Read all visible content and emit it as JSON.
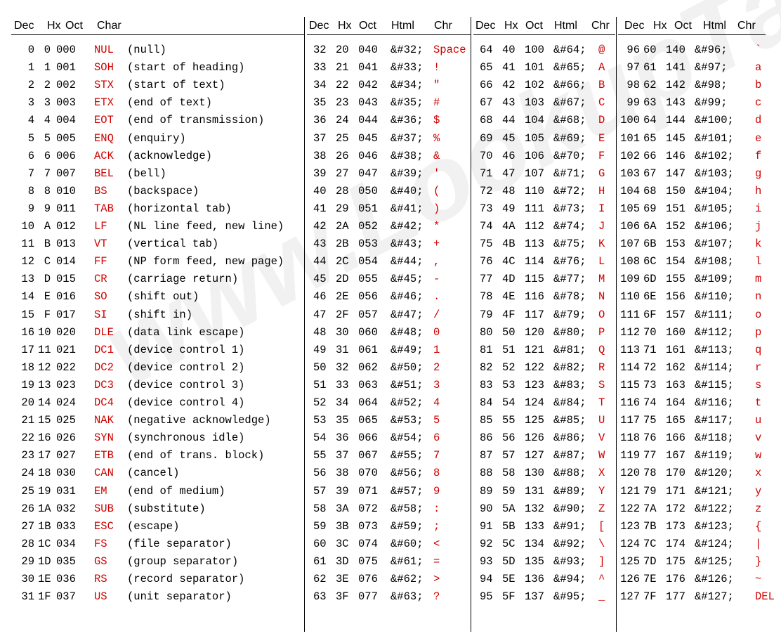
{
  "headers": [
    {
      "dec": "Dec",
      "hx": "Hx",
      "oct": "Oct",
      "char": "Char"
    },
    {
      "dec": "Dec",
      "hx": "Hx",
      "oct": "Oct",
      "html": "Html",
      "chr": "Chr"
    },
    {
      "dec": "Dec",
      "hx": "Hx",
      "oct": "Oct",
      "html": "Html",
      "chr": "Chr"
    },
    {
      "dec": "Dec",
      "hx": "Hx",
      "oct": "Oct",
      "html": "Html",
      "chr": "Chr"
    }
  ],
  "watermark": "www.LookupTables.com",
  "rows": [
    {
      "a": [
        "0",
        "0",
        "000",
        "NUL",
        "(null)"
      ],
      "b": [
        "32",
        "20",
        "040",
        "&#32;",
        "Space"
      ],
      "c": [
        "64",
        "40",
        "100",
        "&#64;",
        "@"
      ],
      "d": [
        "96",
        "60",
        "140",
        "&#96;",
        "`"
      ]
    },
    {
      "a": [
        "1",
        "1",
        "001",
        "SOH",
        "(start of heading)"
      ],
      "b": [
        "33",
        "21",
        "041",
        "&#33;",
        "!"
      ],
      "c": [
        "65",
        "41",
        "101",
        "&#65;",
        "A"
      ],
      "d": [
        "97",
        "61",
        "141",
        "&#97;",
        "a"
      ]
    },
    {
      "a": [
        "2",
        "2",
        "002",
        "STX",
        "(start of text)"
      ],
      "b": [
        "34",
        "22",
        "042",
        "&#34;",
        "\""
      ],
      "c": [
        "66",
        "42",
        "102",
        "&#66;",
        "B"
      ],
      "d": [
        "98",
        "62",
        "142",
        "&#98;",
        "b"
      ]
    },
    {
      "a": [
        "3",
        "3",
        "003",
        "ETX",
        "(end of text)"
      ],
      "b": [
        "35",
        "23",
        "043",
        "&#35;",
        "#"
      ],
      "c": [
        "67",
        "43",
        "103",
        "&#67;",
        "C"
      ],
      "d": [
        "99",
        "63",
        "143",
        "&#99;",
        "c"
      ]
    },
    {
      "a": [
        "4",
        "4",
        "004",
        "EOT",
        "(end of transmission)"
      ],
      "b": [
        "36",
        "24",
        "044",
        "&#36;",
        "$"
      ],
      "c": [
        "68",
        "44",
        "104",
        "&#68;",
        "D"
      ],
      "d": [
        "100",
        "64",
        "144",
        "&#100;",
        "d"
      ]
    },
    {
      "a": [
        "5",
        "5",
        "005",
        "ENQ",
        "(enquiry)"
      ],
      "b": [
        "37",
        "25",
        "045",
        "&#37;",
        "%"
      ],
      "c": [
        "69",
        "45",
        "105",
        "&#69;",
        "E"
      ],
      "d": [
        "101",
        "65",
        "145",
        "&#101;",
        "e"
      ]
    },
    {
      "a": [
        "6",
        "6",
        "006",
        "ACK",
        "(acknowledge)"
      ],
      "b": [
        "38",
        "26",
        "046",
        "&#38;",
        "&"
      ],
      "c": [
        "70",
        "46",
        "106",
        "&#70;",
        "F"
      ],
      "d": [
        "102",
        "66",
        "146",
        "&#102;",
        "f"
      ]
    },
    {
      "a": [
        "7",
        "7",
        "007",
        "BEL",
        "(bell)"
      ],
      "b": [
        "39",
        "27",
        "047",
        "&#39;",
        "'"
      ],
      "c": [
        "71",
        "47",
        "107",
        "&#71;",
        "G"
      ],
      "d": [
        "103",
        "67",
        "147",
        "&#103;",
        "g"
      ]
    },
    {
      "a": [
        "8",
        "8",
        "010",
        "BS",
        "(backspace)"
      ],
      "b": [
        "40",
        "28",
        "050",
        "&#40;",
        "("
      ],
      "c": [
        "72",
        "48",
        "110",
        "&#72;",
        "H"
      ],
      "d": [
        "104",
        "68",
        "150",
        "&#104;",
        "h"
      ]
    },
    {
      "a": [
        "9",
        "9",
        "011",
        "TAB",
        "(horizontal tab)"
      ],
      "b": [
        "41",
        "29",
        "051",
        "&#41;",
        ")"
      ],
      "c": [
        "73",
        "49",
        "111",
        "&#73;",
        "I"
      ],
      "d": [
        "105",
        "69",
        "151",
        "&#105;",
        "i"
      ]
    },
    {
      "a": [
        "10",
        "A",
        "012",
        "LF",
        "(NL line feed, new line)"
      ],
      "b": [
        "42",
        "2A",
        "052",
        "&#42;",
        "*"
      ],
      "c": [
        "74",
        "4A",
        "112",
        "&#74;",
        "J"
      ],
      "d": [
        "106",
        "6A",
        "152",
        "&#106;",
        "j"
      ]
    },
    {
      "a": [
        "11",
        "B",
        "013",
        "VT",
        "(vertical tab)"
      ],
      "b": [
        "43",
        "2B",
        "053",
        "&#43;",
        "+"
      ],
      "c": [
        "75",
        "4B",
        "113",
        "&#75;",
        "K"
      ],
      "d": [
        "107",
        "6B",
        "153",
        "&#107;",
        "k"
      ]
    },
    {
      "a": [
        "12",
        "C",
        "014",
        "FF",
        "(NP form feed, new page)"
      ],
      "b": [
        "44",
        "2C",
        "054",
        "&#44;",
        ","
      ],
      "c": [
        "76",
        "4C",
        "114",
        "&#76;",
        "L"
      ],
      "d": [
        "108",
        "6C",
        "154",
        "&#108;",
        "l"
      ]
    },
    {
      "a": [
        "13",
        "D",
        "015",
        "CR",
        "(carriage return)"
      ],
      "b": [
        "45",
        "2D",
        "055",
        "&#45;",
        "-"
      ],
      "c": [
        "77",
        "4D",
        "115",
        "&#77;",
        "M"
      ],
      "d": [
        "109",
        "6D",
        "155",
        "&#109;",
        "m"
      ]
    },
    {
      "a": [
        "14",
        "E",
        "016",
        "SO",
        "(shift out)"
      ],
      "b": [
        "46",
        "2E",
        "056",
        "&#46;",
        "."
      ],
      "c": [
        "78",
        "4E",
        "116",
        "&#78;",
        "N"
      ],
      "d": [
        "110",
        "6E",
        "156",
        "&#110;",
        "n"
      ]
    },
    {
      "a": [
        "15",
        "F",
        "017",
        "SI",
        "(shift in)"
      ],
      "b": [
        "47",
        "2F",
        "057",
        "&#47;",
        "/"
      ],
      "c": [
        "79",
        "4F",
        "117",
        "&#79;",
        "O"
      ],
      "d": [
        "111",
        "6F",
        "157",
        "&#111;",
        "o"
      ]
    },
    {
      "a": [
        "16",
        "10",
        "020",
        "DLE",
        "(data link escape)"
      ],
      "b": [
        "48",
        "30",
        "060",
        "&#48;",
        "0"
      ],
      "c": [
        "80",
        "50",
        "120",
        "&#80;",
        "P"
      ],
      "d": [
        "112",
        "70",
        "160",
        "&#112;",
        "p"
      ]
    },
    {
      "a": [
        "17",
        "11",
        "021",
        "DC1",
        "(device control 1)"
      ],
      "b": [
        "49",
        "31",
        "061",
        "&#49;",
        "1"
      ],
      "c": [
        "81",
        "51",
        "121",
        "&#81;",
        "Q"
      ],
      "d": [
        "113",
        "71",
        "161",
        "&#113;",
        "q"
      ]
    },
    {
      "a": [
        "18",
        "12",
        "022",
        "DC2",
        "(device control 2)"
      ],
      "b": [
        "50",
        "32",
        "062",
        "&#50;",
        "2"
      ],
      "c": [
        "82",
        "52",
        "122",
        "&#82;",
        "R"
      ],
      "d": [
        "114",
        "72",
        "162",
        "&#114;",
        "r"
      ]
    },
    {
      "a": [
        "19",
        "13",
        "023",
        "DC3",
        "(device control 3)"
      ],
      "b": [
        "51",
        "33",
        "063",
        "&#51;",
        "3"
      ],
      "c": [
        "83",
        "53",
        "123",
        "&#83;",
        "S"
      ],
      "d": [
        "115",
        "73",
        "163",
        "&#115;",
        "s"
      ]
    },
    {
      "a": [
        "20",
        "14",
        "024",
        "DC4",
        "(device control 4)"
      ],
      "b": [
        "52",
        "34",
        "064",
        "&#52;",
        "4"
      ],
      "c": [
        "84",
        "54",
        "124",
        "&#84;",
        "T"
      ],
      "d": [
        "116",
        "74",
        "164",
        "&#116;",
        "t"
      ]
    },
    {
      "a": [
        "21",
        "15",
        "025",
        "NAK",
        "(negative acknowledge)"
      ],
      "b": [
        "53",
        "35",
        "065",
        "&#53;",
        "5"
      ],
      "c": [
        "85",
        "55",
        "125",
        "&#85;",
        "U"
      ],
      "d": [
        "117",
        "75",
        "165",
        "&#117;",
        "u"
      ]
    },
    {
      "a": [
        "22",
        "16",
        "026",
        "SYN",
        "(synchronous idle)"
      ],
      "b": [
        "54",
        "36",
        "066",
        "&#54;",
        "6"
      ],
      "c": [
        "86",
        "56",
        "126",
        "&#86;",
        "V"
      ],
      "d": [
        "118",
        "76",
        "166",
        "&#118;",
        "v"
      ]
    },
    {
      "a": [
        "23",
        "17",
        "027",
        "ETB",
        "(end of trans. block)"
      ],
      "b": [
        "55",
        "37",
        "067",
        "&#55;",
        "7"
      ],
      "c": [
        "87",
        "57",
        "127",
        "&#87;",
        "W"
      ],
      "d": [
        "119",
        "77",
        "167",
        "&#119;",
        "w"
      ]
    },
    {
      "a": [
        "24",
        "18",
        "030",
        "CAN",
        "(cancel)"
      ],
      "b": [
        "56",
        "38",
        "070",
        "&#56;",
        "8"
      ],
      "c": [
        "88",
        "58",
        "130",
        "&#88;",
        "X"
      ],
      "d": [
        "120",
        "78",
        "170",
        "&#120;",
        "x"
      ]
    },
    {
      "a": [
        "25",
        "19",
        "031",
        "EM",
        "(end of medium)"
      ],
      "b": [
        "57",
        "39",
        "071",
        "&#57;",
        "9"
      ],
      "c": [
        "89",
        "59",
        "131",
        "&#89;",
        "Y"
      ],
      "d": [
        "121",
        "79",
        "171",
        "&#121;",
        "y"
      ]
    },
    {
      "a": [
        "26",
        "1A",
        "032",
        "SUB",
        "(substitute)"
      ],
      "b": [
        "58",
        "3A",
        "072",
        "&#58;",
        ":"
      ],
      "c": [
        "90",
        "5A",
        "132",
        "&#90;",
        "Z"
      ],
      "d": [
        "122",
        "7A",
        "172",
        "&#122;",
        "z"
      ]
    },
    {
      "a": [
        "27",
        "1B",
        "033",
        "ESC",
        "(escape)"
      ],
      "b": [
        "59",
        "3B",
        "073",
        "&#59;",
        ";"
      ],
      "c": [
        "91",
        "5B",
        "133",
        "&#91;",
        "["
      ],
      "d": [
        "123",
        "7B",
        "173",
        "&#123;",
        "{"
      ]
    },
    {
      "a": [
        "28",
        "1C",
        "034",
        "FS",
        "(file separator)"
      ],
      "b": [
        "60",
        "3C",
        "074",
        "&#60;",
        "<"
      ],
      "c": [
        "92",
        "5C",
        "134",
        "&#92;",
        "\\"
      ],
      "d": [
        "124",
        "7C",
        "174",
        "&#124;",
        "|"
      ]
    },
    {
      "a": [
        "29",
        "1D",
        "035",
        "GS",
        "(group separator)"
      ],
      "b": [
        "61",
        "3D",
        "075",
        "&#61;",
        "="
      ],
      "c": [
        "93",
        "5D",
        "135",
        "&#93;",
        "]"
      ],
      "d": [
        "125",
        "7D",
        "175",
        "&#125;",
        "}"
      ]
    },
    {
      "a": [
        "30",
        "1E",
        "036",
        "RS",
        "(record separator)"
      ],
      "b": [
        "62",
        "3E",
        "076",
        "&#62;",
        ">"
      ],
      "c": [
        "94",
        "5E",
        "136",
        "&#94;",
        "^"
      ],
      "d": [
        "126",
        "7E",
        "176",
        "&#126;",
        "~"
      ]
    },
    {
      "a": [
        "31",
        "1F",
        "037",
        "US",
        "(unit separator)"
      ],
      "b": [
        "63",
        "3F",
        "077",
        "&#63;",
        "?"
      ],
      "c": [
        "95",
        "5F",
        "137",
        "&#95;",
        "_"
      ],
      "d": [
        "127",
        "7F",
        "177",
        "&#127;",
        "DEL"
      ]
    }
  ],
  "colors": {
    "char_red": "#d00000",
    "text": "#000000",
    "background": "#ffffff"
  }
}
